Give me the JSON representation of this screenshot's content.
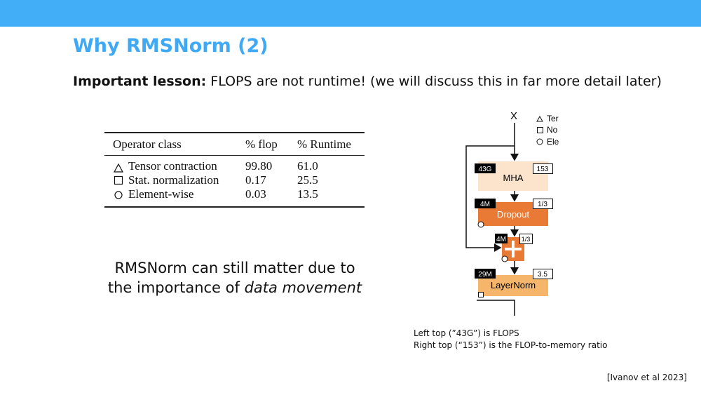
{
  "header": {
    "title": "Why RMSNorm (2)"
  },
  "lesson": {
    "label": "Important lesson:",
    "text": "FLOPS are not runtime! (we will discuss this in far more detail later)"
  },
  "table": {
    "headers": [
      "Operator class",
      "% flop",
      "% Runtime"
    ],
    "rows": [
      [
        "Tensor contraction",
        "99.80",
        "61.0"
      ],
      [
        "Stat. normalization",
        "0.17",
        "25.5"
      ],
      [
        "Element-wise",
        "0.03",
        "13.5"
      ]
    ]
  },
  "callout": {
    "line1": "RMSNorm can still matter due to",
    "line2": "the importance of",
    "emphasis": "data movement"
  },
  "diagram": {
    "input": "X",
    "legend": [
      "Ter",
      "No",
      "Ele"
    ],
    "blocks": [
      {
        "label": "MHA",
        "flops": "43G",
        "ratio": "153"
      },
      {
        "label": "Dropout",
        "flops": "4M",
        "ratio": "1/3"
      },
      {
        "label": "",
        "flops": "4M",
        "ratio": "1/3"
      },
      {
        "label": "LayerNorm",
        "flops": "29M",
        "ratio": "3.5"
      }
    ]
  },
  "caption": [
    "Left top (”43G”) is FLOPS",
    "Right top (“153”) is the FLOP-to-memory ratio"
  ],
  "citation": "[Ivanov et al 2023]"
}
